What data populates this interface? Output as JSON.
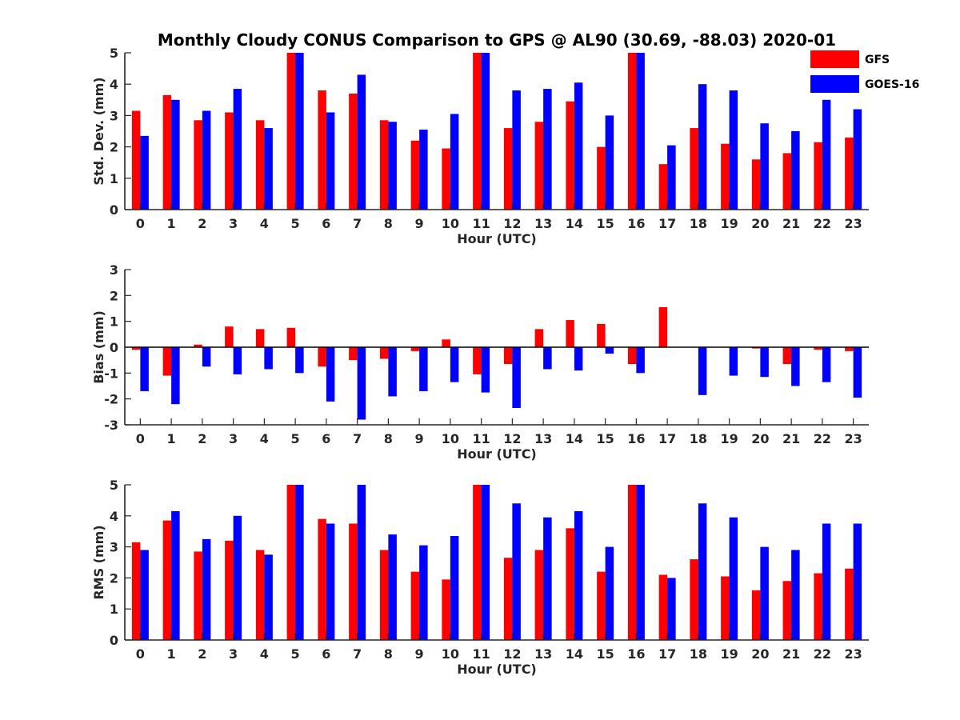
{
  "figure": {
    "title": "Monthly Cloudy CONUS Comparison to GPS @ AL90 (30.69, -88.03) 2020-01"
  },
  "legend": {
    "placement": "top-right",
    "items": [
      {
        "name": "GFS",
        "color": "#ff0000"
      },
      {
        "name": "GOES-16",
        "color": "#0000ff"
      }
    ]
  },
  "chart_data": [
    {
      "type": "bar",
      "xlabel": "Hour (UTC)",
      "ylabel": "Std. Dev. (mm)",
      "ylim": [
        0,
        5
      ],
      "yticks": [
        0,
        1,
        2,
        3,
        4,
        5
      ],
      "categories": [
        "0",
        "1",
        "2",
        "3",
        "4",
        "5",
        "6",
        "7",
        "8",
        "9",
        "10",
        "11",
        "12",
        "13",
        "14",
        "15",
        "16",
        "17",
        "18",
        "19",
        "20",
        "21",
        "22",
        "23"
      ],
      "series": [
        {
          "name": "GFS",
          "color": "#ff0000",
          "values": [
            3.15,
            3.65,
            2.85,
            3.1,
            2.85,
            5.0,
            3.8,
            3.7,
            2.85,
            2.2,
            1.95,
            5.0,
            2.6,
            2.8,
            3.45,
            2.0,
            5.0,
            1.45,
            2.6,
            2.1,
            1.6,
            1.8,
            2.15,
            2.3
          ]
        },
        {
          "name": "GOES-16",
          "color": "#0000ff",
          "values": [
            2.35,
            3.5,
            3.15,
            3.85,
            2.6,
            5.0,
            3.1,
            4.3,
            2.8,
            2.55,
            3.05,
            5.0,
            3.8,
            3.85,
            4.05,
            3.0,
            5.0,
            2.05,
            4.0,
            3.8,
            2.75,
            2.5,
            3.5,
            3.2
          ]
        }
      ]
    },
    {
      "type": "bar",
      "xlabel": "Hour (UTC)",
      "ylabel": "Bias (mm)",
      "ylim": [
        -3,
        3
      ],
      "yticks": [
        -3,
        -2,
        -1,
        0,
        1,
        2,
        3
      ],
      "categories": [
        "0",
        "1",
        "2",
        "3",
        "4",
        "5",
        "6",
        "7",
        "8",
        "9",
        "10",
        "11",
        "12",
        "13",
        "14",
        "15",
        "16",
        "17",
        "18",
        "19",
        "20",
        "21",
        "22",
        "23"
      ],
      "series": [
        {
          "name": "GFS",
          "color": "#ff0000",
          "values": [
            -0.1,
            -1.1,
            0.1,
            0.8,
            0.7,
            0.75,
            -0.75,
            -0.5,
            -0.45,
            -0.15,
            0.3,
            -1.05,
            -0.65,
            0.7,
            1.05,
            0.9,
            -0.65,
            1.55,
            0.0,
            0.0,
            -0.05,
            -0.65,
            -0.1,
            -0.15
          ]
        },
        {
          "name": "GOES-16",
          "color": "#0000ff",
          "values": [
            -1.7,
            -2.2,
            -0.75,
            -1.05,
            -0.85,
            -1.0,
            -2.1,
            -2.8,
            -1.9,
            -1.7,
            -1.35,
            -1.75,
            -2.35,
            -0.85,
            -0.9,
            -0.25,
            -1.0,
            0.0,
            -1.85,
            -1.1,
            -1.15,
            -1.5,
            -1.35,
            -1.95
          ]
        }
      ]
    },
    {
      "type": "bar",
      "xlabel": "Hour (UTC)",
      "ylabel": "RMS (mm)",
      "ylim": [
        0,
        5
      ],
      "yticks": [
        0,
        1,
        2,
        3,
        4,
        5
      ],
      "categories": [
        "0",
        "1",
        "2",
        "3",
        "4",
        "5",
        "6",
        "7",
        "8",
        "9",
        "10",
        "11",
        "12",
        "13",
        "14",
        "15",
        "16",
        "17",
        "18",
        "19",
        "20",
        "21",
        "22",
        "23"
      ],
      "series": [
        {
          "name": "GFS",
          "color": "#ff0000",
          "values": [
            3.15,
            3.85,
            2.85,
            3.2,
            2.9,
            5.0,
            3.9,
            3.75,
            2.9,
            2.2,
            1.95,
            5.0,
            2.65,
            2.9,
            3.6,
            2.2,
            5.0,
            2.1,
            2.6,
            2.05,
            1.6,
            1.9,
            2.15,
            2.3
          ]
        },
        {
          "name": "GOES-16",
          "color": "#0000ff",
          "values": [
            2.9,
            4.15,
            3.25,
            4.0,
            2.75,
            5.0,
            3.75,
            5.0,
            3.4,
            3.05,
            3.35,
            5.0,
            4.4,
            3.95,
            4.15,
            3.0,
            5.0,
            2.0,
            4.4,
            3.95,
            3.0,
            2.9,
            3.75,
            3.75
          ]
        }
      ]
    }
  ]
}
